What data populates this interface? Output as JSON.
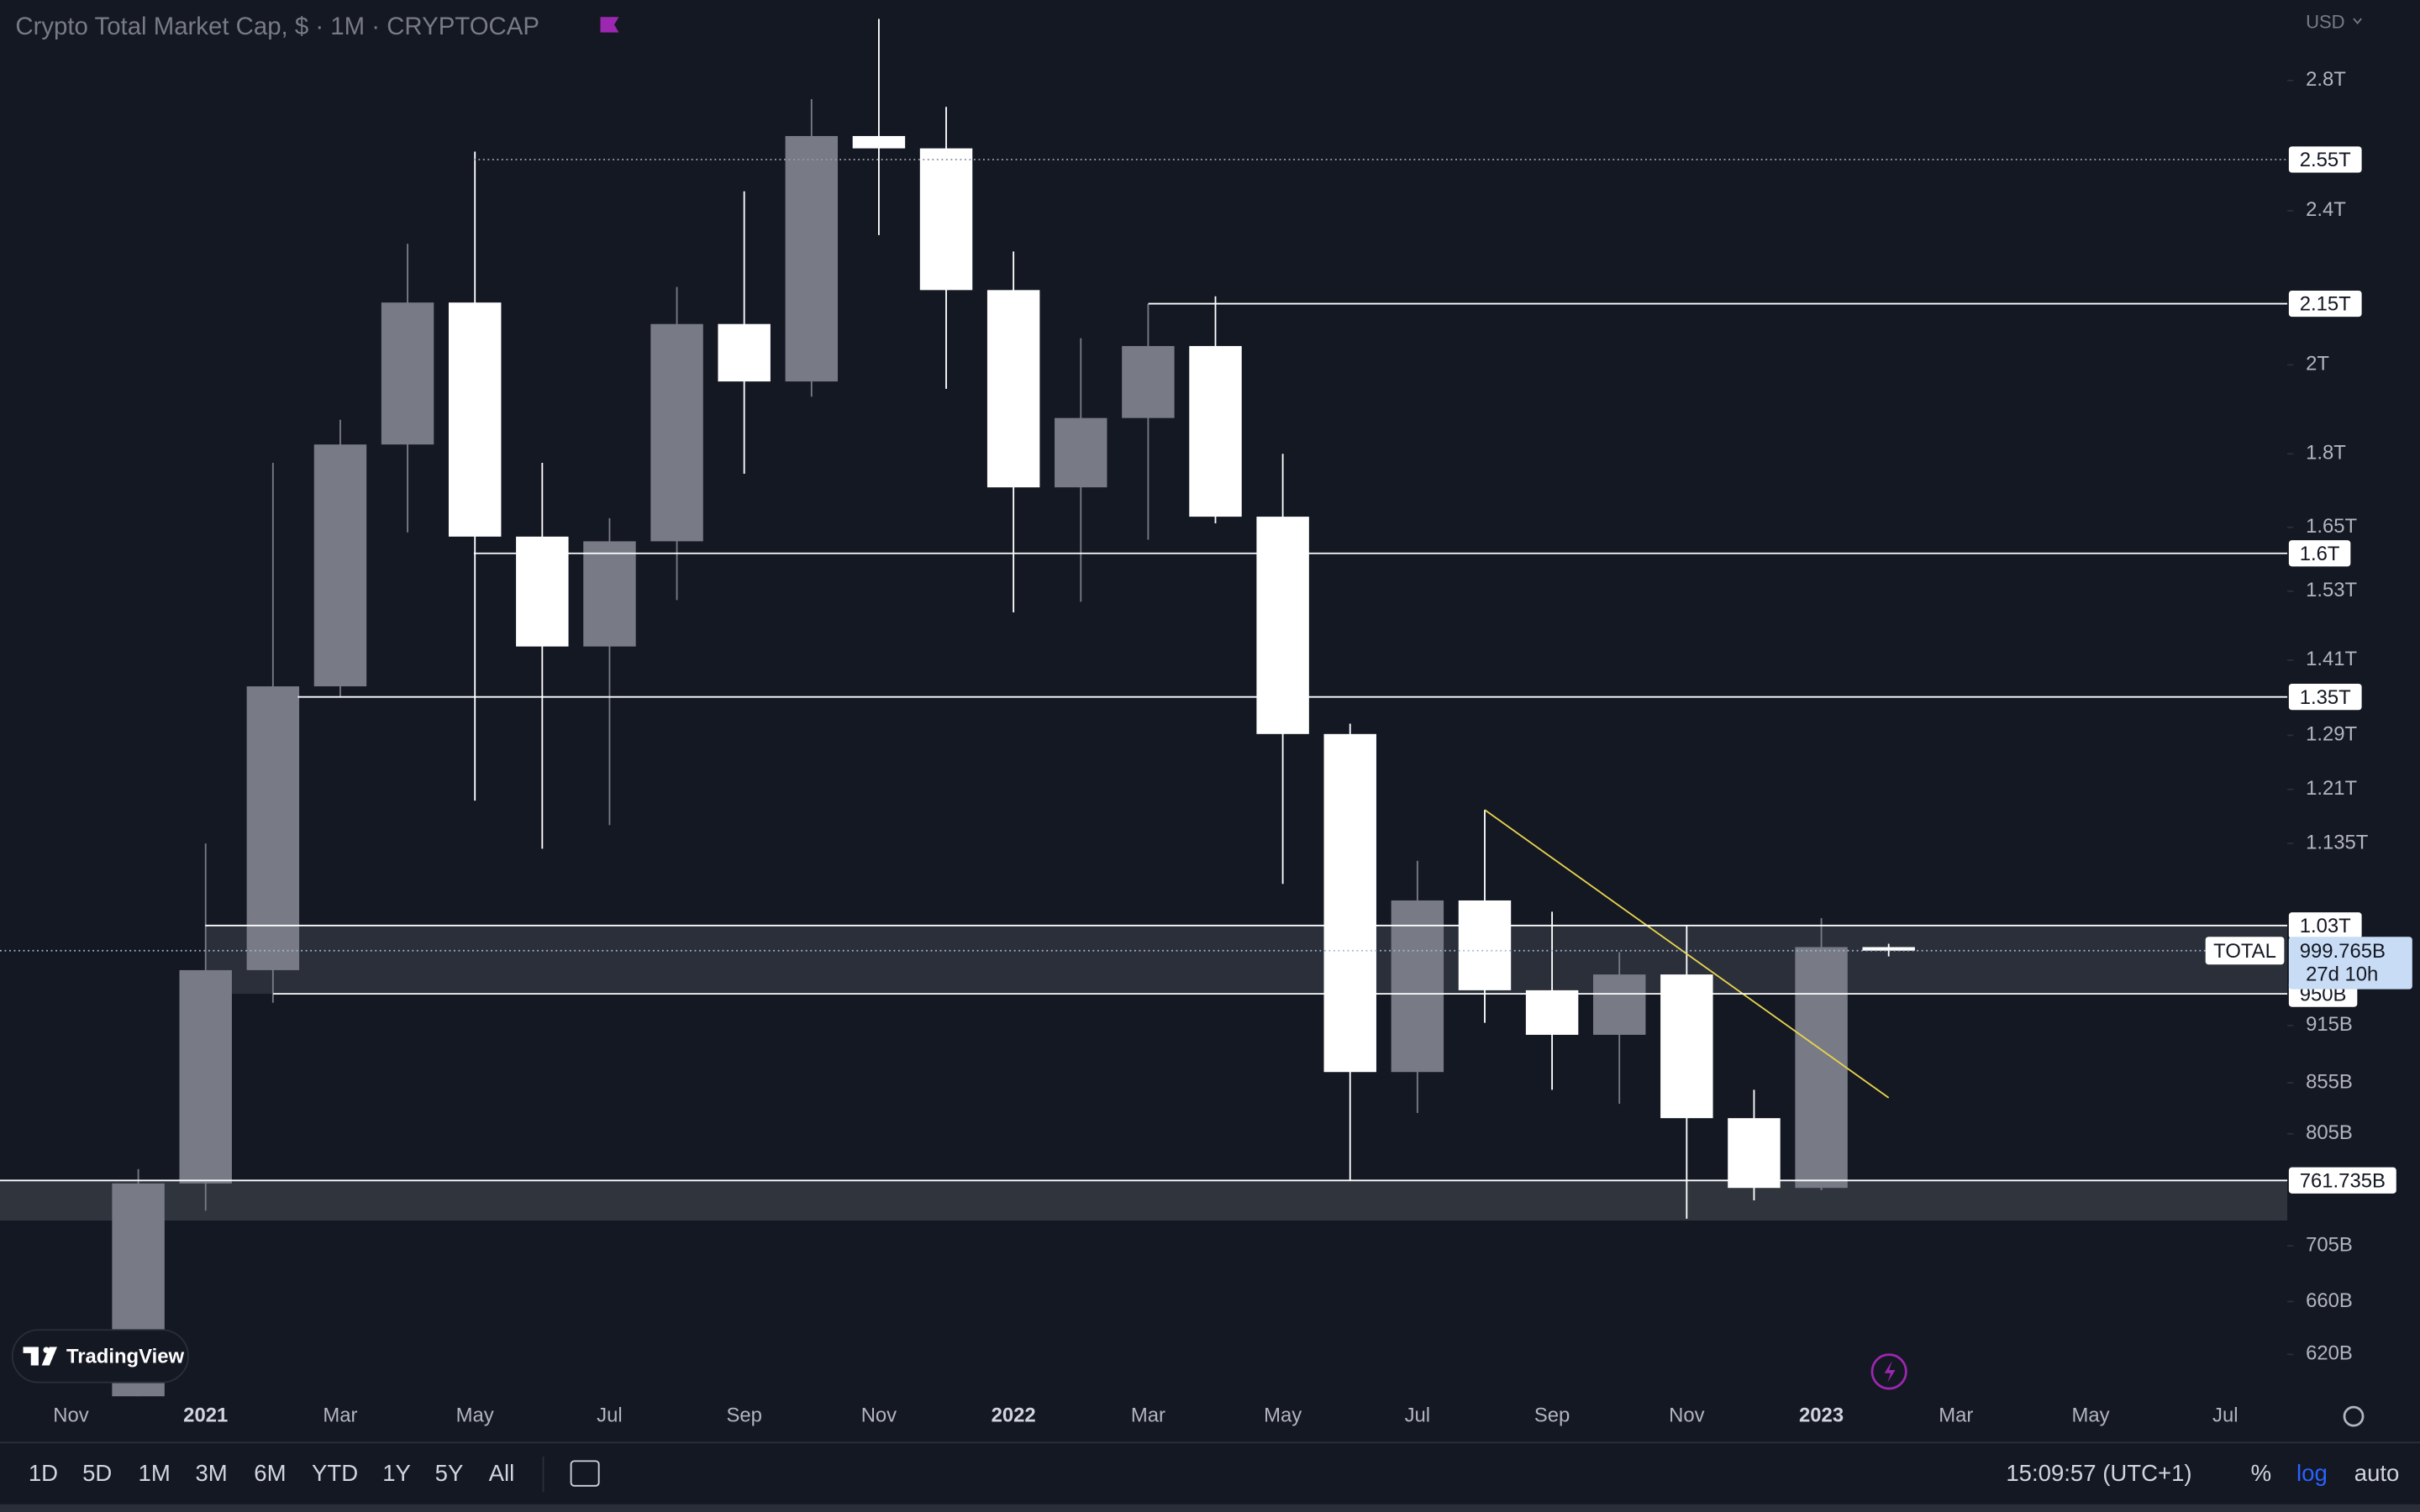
{
  "header": {
    "title": "Crypto Total Market Cap, $ · 1M · CRYPTOCAP",
    "currency": "USD"
  },
  "chart_data": {
    "type": "candlestick",
    "categories": [
      "Nov",
      null,
      "2021",
      null,
      "Mar",
      null,
      "May",
      null,
      "Jul",
      null,
      "Sep",
      null,
      "Nov",
      null,
      "2022",
      null,
      "Mar",
      null,
      "May",
      null,
      "Jul",
      null,
      "Sep",
      null,
      "Nov",
      null,
      "2023",
      null,
      "Mar",
      null,
      "May",
      null,
      "Jul"
    ],
    "open": [
      null,
      580,
      759,
      977,
      1367,
      1820,
      2153,
      1632,
      1433,
      1623,
      2099,
      1961,
      2622,
      2584,
      2185,
      1730,
      1878,
      2045,
      1671,
      1292,
      866,
      1061,
      954,
      905,
      972,
      820,
      755,
      1004,
      null,
      null,
      null,
      null,
      null
    ],
    "high": [
      null,
      772,
      1135,
      1781,
      1874,
      2308,
      2574,
      1781,
      1668,
      2193,
      2456,
      2739,
      3012,
      2714,
      2287,
      2064,
      2149,
      2169,
      1800,
      1308,
      1112,
      1181,
      1047,
      998,
      1030,
      848,
      1039,
      1008,
      null,
      null,
      null,
      null,
      null
    ],
    "low": [
      null,
      575,
      735,
      940,
      1349,
      1640,
      1194,
      1128,
      1160,
      1514,
      1758,
      1926,
      2332,
      1944,
      1492,
      1511,
      1626,
      1658,
      1082,
      762,
      825,
      918,
      848,
      834,
      728,
      744,
      753,
      993,
      null,
      null,
      null,
      null,
      null
    ],
    "close": [
      null,
      759,
      977,
      1367,
      1820,
      2153,
      1632,
      1433,
      1623,
      2099,
      1961,
      2622,
      2584,
      2185,
      1730,
      1878,
      2045,
      1671,
      1292,
      866,
      1061,
      954,
      905,
      972,
      820,
      755,
      1004,
      999.765,
      null,
      null,
      null,
      null,
      null
    ],
    "up_color": "#787b86",
    "down_color": "#ffffff",
    "log_scale": true,
    "ylim": [
      590,
      3080
    ],
    "yticks": [
      {
        "value": 2800,
        "label": "2.8T"
      },
      {
        "value": 2400,
        "label": "2.4T"
      },
      {
        "value": 2000,
        "label": "2T"
      },
      {
        "value": 1800,
        "label": "1.8T"
      },
      {
        "value": 1650,
        "label": "1.65T"
      },
      {
        "value": 1530,
        "label": "1.53T"
      },
      {
        "value": 1410,
        "label": "1.41T"
      },
      {
        "value": 1290,
        "label": "1.29T"
      },
      {
        "value": 1210,
        "label": "1.21T"
      },
      {
        "value": 1135,
        "label": "1.135T"
      },
      {
        "value": 915,
        "label": "915B"
      },
      {
        "value": 855,
        "label": "855B"
      },
      {
        "value": 805,
        "label": "805B"
      },
      {
        "value": 705,
        "label": "705B"
      },
      {
        "value": 660,
        "label": "660B"
      },
      {
        "value": 620,
        "label": "620B"
      }
    ],
    "levels": [
      {
        "value": 2550,
        "label": "2.55T"
      },
      {
        "value": 2150,
        "label": "2.15T"
      },
      {
        "value": 1600,
        "label": "1.6T"
      },
      {
        "value": 1350,
        "label": "1.35T"
      },
      {
        "value": 1030,
        "label": "1.03T"
      },
      {
        "value": 950,
        "label": "950B"
      },
      {
        "value": 761.735,
        "label": "761.735B"
      }
    ],
    "current": {
      "name": "TOTAL",
      "value": 999.765,
      "label": "999.765B",
      "countdown": "27d 10h"
    },
    "trend_line": {
      "color": "#e8d44d",
      "start": [
        21,
        1181
      ],
      "end": [
        27,
        840
      ]
    }
  },
  "toolbar": {
    "ranges": [
      "1D",
      "5D",
      "1M",
      "3M",
      "6M",
      "YTD",
      "1Y",
      "5Y",
      "All"
    ],
    "time": "15:09:57 (UTC+1)",
    "options": [
      "%",
      "log",
      "auto"
    ]
  },
  "branding": "TradingView"
}
